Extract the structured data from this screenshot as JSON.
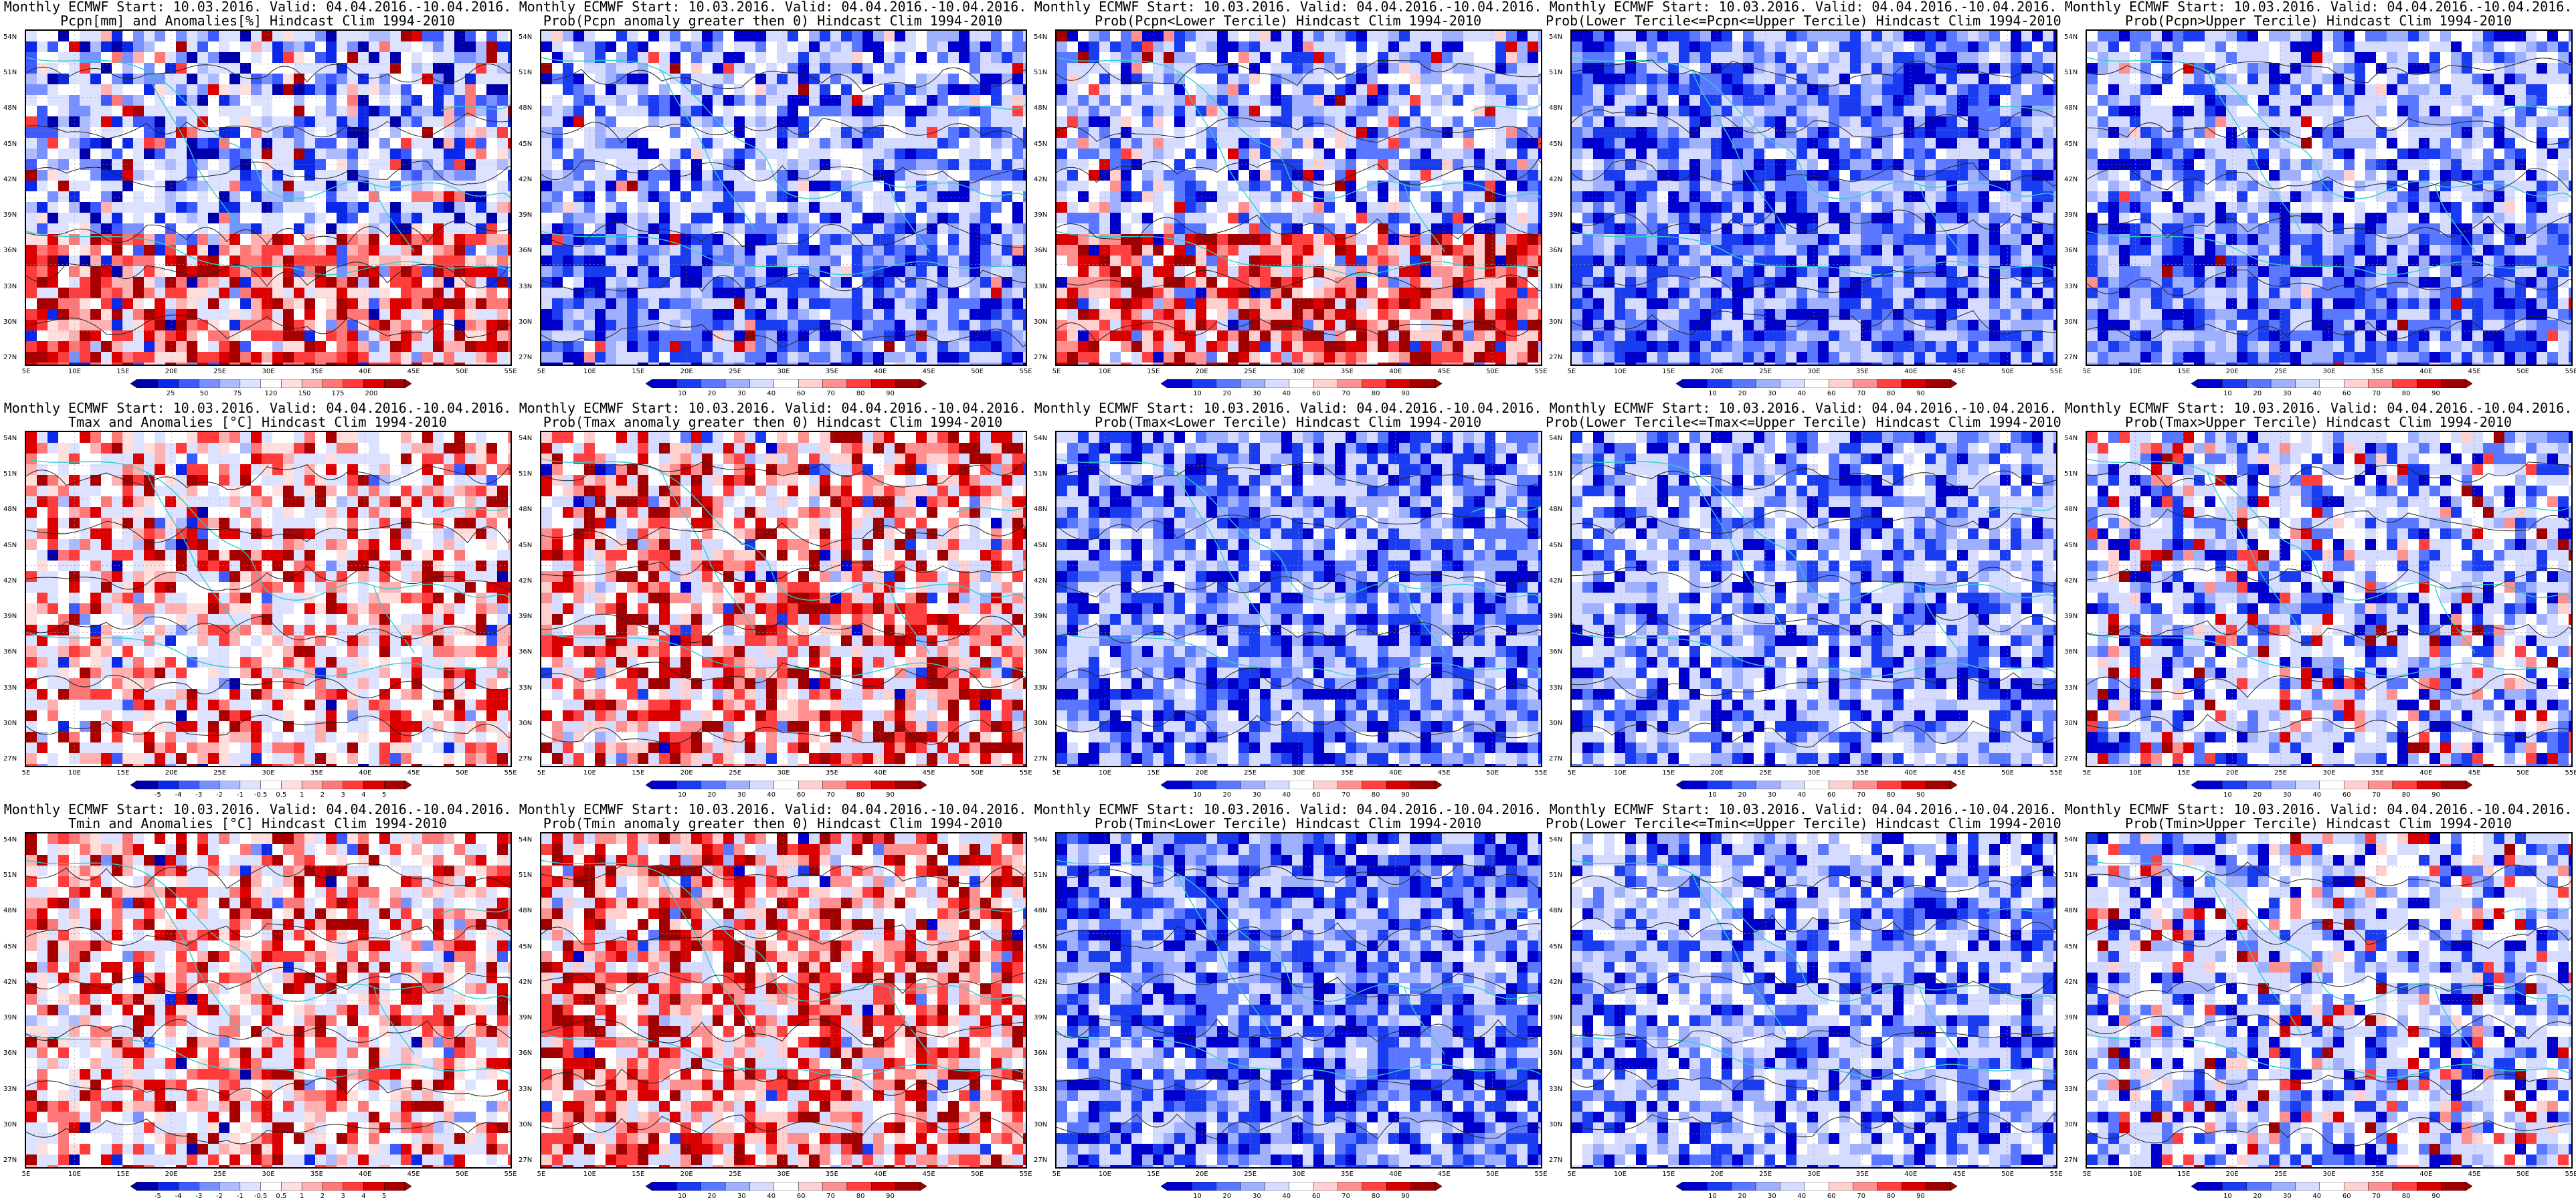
{
  "figure": {
    "title_line1": "Monthly ECMWF Start: 10.03.2016. Valid: 04.04.2016.-10.04.2016.",
    "lat_labels": [
      "54N",
      "51N",
      "48N",
      "45N",
      "42N",
      "39N",
      "36N",
      "33N",
      "30N",
      "27N"
    ],
    "lon_labels": [
      "5E",
      "10E",
      "15E",
      "20E",
      "25E",
      "30E",
      "35E",
      "40E",
      "45E",
      "50E",
      "55E"
    ],
    "rows": [
      {
        "variable": "Pcpn",
        "panels": [
          {
            "title_line2": "Pcpn[mm] and Anomalies[%] Hindcast Clim 1994-2010",
            "scheme": "anom_pcpn",
            "cbar_labels": [
              "25",
              "50",
              "75",
              "120",
              "150",
              "175",
              "200"
            ],
            "map_mix": {
              "blue": 0.35,
              "red": 0.35
            }
          },
          {
            "title_line2": "Prob(Pcpn anomaly greater then 0) Hindcast Clim 1994-2010",
            "scheme": "prob",
            "cbar_labels": [
              "10",
              "20",
              "30",
              "40",
              "60",
              "70",
              "80",
              "90"
            ],
            "map_mix": {
              "blue": 0.55,
              "red": 0.03
            }
          },
          {
            "title_line2": "Prob(Pcpn<Lower Tercile) Hindcast Clim 1994-2010",
            "scheme": "prob",
            "cbar_labels": [
              "10",
              "20",
              "30",
              "40",
              "60",
              "70",
              "80",
              "90"
            ],
            "map_mix": {
              "blue": 0.35,
              "red": 0.35
            }
          },
          {
            "title_line2": "Prob(Lower Tercile<=Pcpn<=Upper Tercile) Hindcast Clim 1994-2010",
            "scheme": "prob",
            "cbar_labels": [
              "10",
              "20",
              "30",
              "40",
              "60",
              "70",
              "80",
              "90"
            ],
            "map_mix": {
              "blue": 0.9,
              "red": 0.0
            }
          },
          {
            "title_line2": "Prob(Pcpn>Upper Tercile) Hindcast Clim 1994-2010",
            "scheme": "prob",
            "cbar_labels": [
              "10",
              "20",
              "30",
              "40",
              "60",
              "70",
              "80",
              "90"
            ],
            "map_mix": {
              "blue": 0.6,
              "red": 0.02
            }
          }
        ]
      },
      {
        "variable": "Tmax",
        "panels": [
          {
            "title_line2": "Tmax and Anomalies [°C] Hindcast Clim 1994-2010",
            "scheme": "anom_temp",
            "cbar_labels": [
              "-5",
              "-4",
              "-3",
              "-2",
              "-1",
              "-0.5",
              "0.5",
              "1",
              "2",
              "3",
              "4",
              "5"
            ],
            "map_mix": {
              "blue": 0.05,
              "red": 0.45
            }
          },
          {
            "title_line2": "Prob(Tmax anomaly greater then 0) Hindcast Clim 1994-2010",
            "scheme": "prob",
            "cbar_labels": [
              "10",
              "20",
              "30",
              "40",
              "60",
              "70",
              "80",
              "90"
            ],
            "map_mix": {
              "blue": 0.05,
              "red": 0.55
            }
          },
          {
            "title_line2": "Prob(Tmax<Lower Tercile) Hindcast Clim 1994-2010",
            "scheme": "prob",
            "cbar_labels": [
              "10",
              "20",
              "30",
              "40",
              "60",
              "70",
              "80",
              "90"
            ],
            "map_mix": {
              "blue": 0.85,
              "red": 0.0
            }
          },
          {
            "title_line2": "Prob(Lower Tercile<=Tmax<=Upper Tercile) Hindcast Clim 1994-2010",
            "scheme": "prob",
            "cbar_labels": [
              "10",
              "20",
              "30",
              "40",
              "60",
              "70",
              "80",
              "90"
            ],
            "map_mix": {
              "blue": 0.65,
              "red": 0.0
            }
          },
          {
            "title_line2": "Prob(Tmax>Upper Tercile) Hindcast Clim 1994-2010",
            "scheme": "prob",
            "cbar_labels": [
              "10",
              "20",
              "30",
              "40",
              "60",
              "70",
              "80",
              "90"
            ],
            "map_mix": {
              "blue": 0.45,
              "red": 0.12
            }
          }
        ]
      },
      {
        "variable": "Tmin",
        "panels": [
          {
            "title_line2": "Tmin and Anomalies [°C] Hindcast Clim 1994-2010",
            "scheme": "anom_temp",
            "cbar_labels": [
              "-5",
              "-4",
              "-3",
              "-2",
              "-1",
              "-0.5",
              "0.5",
              "1",
              "2",
              "3",
              "4",
              "5"
            ],
            "map_mix": {
              "blue": 0.04,
              "red": 0.5
            }
          },
          {
            "title_line2": "Prob(Tmin anomaly greater then 0) Hindcast Clim 1994-2010",
            "scheme": "prob",
            "cbar_labels": [
              "10",
              "20",
              "30",
              "40",
              "60",
              "70",
              "80",
              "90"
            ],
            "map_mix": {
              "blue": 0.04,
              "red": 0.62
            }
          },
          {
            "title_line2": "Prob(Tmin<Lower Tercile) Hindcast Clim 1994-2010",
            "scheme": "prob",
            "cbar_labels": [
              "10",
              "20",
              "30",
              "40",
              "60",
              "70",
              "80",
              "90"
            ],
            "map_mix": {
              "blue": 0.9,
              "red": 0.0
            }
          },
          {
            "title_line2": "Prob(Lower Tercile<=Tmin<=Upper Tercile) Hindcast Clim 1994-2010",
            "scheme": "prob",
            "cbar_labels": [
              "10",
              "20",
              "30",
              "40",
              "60",
              "70",
              "80",
              "90"
            ],
            "map_mix": {
              "blue": 0.6,
              "red": 0.0
            }
          },
          {
            "title_line2": "Prob(Tmin>Upper Tercile) Hindcast Clim 1994-2010",
            "scheme": "prob",
            "cbar_labels": [
              "10",
              "20",
              "30",
              "40",
              "60",
              "70",
              "80",
              "90"
            ],
            "map_mix": {
              "blue": 0.4,
              "red": 0.12
            }
          }
        ]
      }
    ]
  },
  "colors": {
    "coastline": "#33cccc",
    "contour": "#222222",
    "prob_scale": [
      "#0000cc",
      "#1a3cf0",
      "#5a78ff",
      "#9fb0ff",
      "#d6dcff",
      "#ffffff",
      "#ffd0d0",
      "#ff9090",
      "#ff4040",
      "#d80000",
      "#a00000"
    ],
    "anom_scale": [
      "#0000aa",
      "#0a28e6",
      "#3c5aff",
      "#7891ff",
      "#aebcff",
      "#dde3ff",
      "#ffffff",
      "#ffdede",
      "#ffb0b0",
      "#ff7878",
      "#ff3c3c",
      "#dd0000",
      "#a80000"
    ]
  }
}
